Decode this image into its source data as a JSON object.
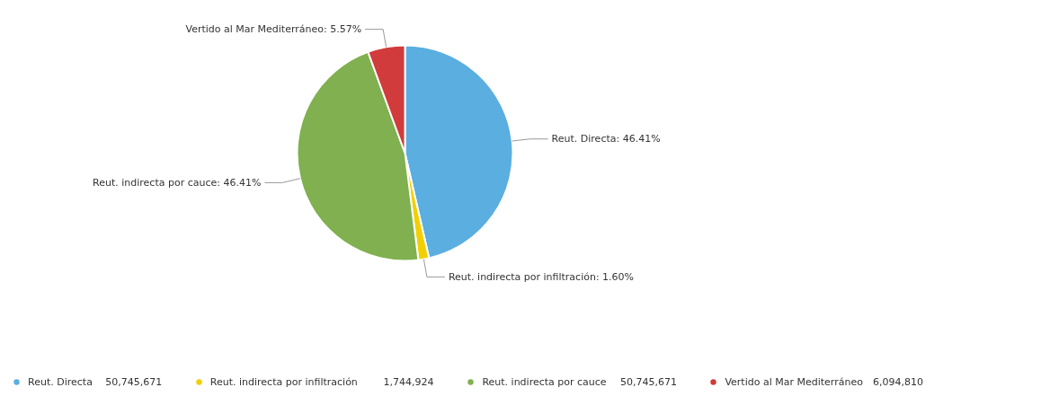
{
  "chart_data": {
    "type": "pie",
    "categories": [
      "Reut. Directa",
      "Reut. indirecta por infiltración",
      "Reut. indirecta por cauce",
      "Vertido al Mar Mediterráneo"
    ],
    "values": [
      46.41,
      1.6,
      46.41,
      5.57
    ],
    "value_labels": [
      "Reut. Directa: 46.41%",
      "Reut. indirecta por infiltración: 1.60%",
      "Reut. indirecta por cauce: 46.41%",
      "Vertido al Mar Mediterráneo: 5.57%"
    ],
    "colors": [
      "#5aaee0",
      "#f2cf00",
      "#80b04f",
      "#d13b3b"
    ],
    "annotations": [
      "50,745,671",
      "1,744,924",
      "50,745,671",
      "6,094,810"
    ],
    "legend": "bottom"
  }
}
